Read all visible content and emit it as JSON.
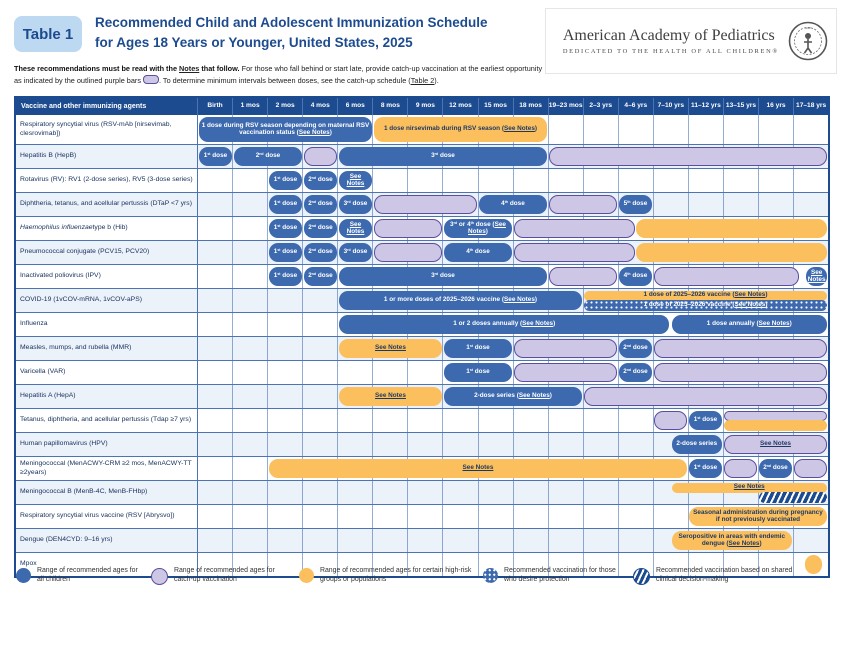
{
  "header": {
    "badge": "Table 1",
    "title_line1": "Recommended Child and Adolescent Immunization Schedule",
    "title_line2": "for Ages 18 Years or Younger, United States, 2025"
  },
  "logo": {
    "name": "American Academy of Pediatrics",
    "tagline": "DEDICATED TO THE HEALTH OF ALL CHILDREN®"
  },
  "intro": {
    "bold_pre": "These recommendations must be read with the ",
    "notes_link": "Notes",
    "bold_post": " that follow.",
    "text_mid": " For those who fall behind or start late, provide catch-up vaccination at the earliest opportunity as indicated by the outlined purple bars ",
    "text_after_pill": ". To determine minimum intervals between doses, see the catch-up schedule (",
    "table2_link": "Table 2",
    "text_end": ")."
  },
  "table": {
    "corner_header": "Vaccine and other immunizing agents",
    "columns": [
      "Birth",
      "1 mos",
      "2 mos",
      "4 mos",
      "6 mos",
      "8 mos",
      "9 mos",
      "12 mos",
      "15 mos",
      "18 mos",
      "19–23 mos",
      "2–3 yrs",
      "4–6 yrs",
      "7–10 yrs",
      "11–12 yrs",
      "13–15 yrs",
      "16 yrs",
      "17–18 yrs"
    ],
    "rows": [
      {
        "label": "Respiratory syncytial virus (RSV-mAb [nirsevimab, clesrovimab])",
        "bars": [
          {
            "type": "blue",
            "start": 0,
            "end": 5,
            "label": "1 dose during RSV season depending on maternal RSV vaccination status (See Notes)"
          },
          {
            "type": "orange",
            "start": 5,
            "end": 10,
            "label": "1 dose nirsevimab during RSV season (See Notes)"
          }
        ]
      },
      {
        "label": "Hepatitis B (HepB)",
        "bars": [
          {
            "type": "blue",
            "start": 0,
            "end": 1,
            "label": "1st dose"
          },
          {
            "type": "blue",
            "start": 1,
            "end": 3,
            "label": "2nd dose"
          },
          {
            "type": "purple",
            "start": 3,
            "end": 4,
            "label": ""
          },
          {
            "type": "blue",
            "start": 4,
            "end": 10,
            "label": "3rd dose"
          },
          {
            "type": "purple",
            "start": 10,
            "end": 18,
            "label": ""
          }
        ]
      },
      {
        "label": "Rotavirus (RV): RV1 (2-dose series), RV5 (3-dose series)",
        "bars": [
          {
            "type": "blue",
            "start": 2,
            "end": 3,
            "label": "1st dose"
          },
          {
            "type": "blue",
            "start": 3,
            "end": 4,
            "label": "2nd dose"
          },
          {
            "type": "blue",
            "start": 4,
            "end": 5,
            "label": "See Notes"
          }
        ]
      },
      {
        "label": "Diphtheria, tetanus, and acellular pertussis (DTaP <7 yrs)",
        "bars": [
          {
            "type": "blue",
            "start": 2,
            "end": 3,
            "label": "1st dose"
          },
          {
            "type": "blue",
            "start": 3,
            "end": 4,
            "label": "2nd dose"
          },
          {
            "type": "blue",
            "start": 4,
            "end": 5,
            "label": "3rd dose"
          },
          {
            "type": "purple",
            "start": 5,
            "end": 8,
            "label": ""
          },
          {
            "type": "blue",
            "start": 8,
            "end": 10,
            "label": "4th dose"
          },
          {
            "type": "purple",
            "start": 10,
            "end": 12,
            "label": ""
          },
          {
            "type": "blue",
            "start": 12,
            "end": 13,
            "label": "5th dose"
          }
        ]
      },
      {
        "label": "*Haemophilus influenzae* type b (Hib)",
        "bars": [
          {
            "type": "blue",
            "start": 2,
            "end": 3,
            "label": "1st dose"
          },
          {
            "type": "blue",
            "start": 3,
            "end": 4,
            "label": "2nd dose"
          },
          {
            "type": "blue",
            "start": 4,
            "end": 5,
            "label": "See Notes"
          },
          {
            "type": "purple",
            "start": 5,
            "end": 7,
            "label": ""
          },
          {
            "type": "blue",
            "start": 7,
            "end": 9,
            "label": "3rd or 4th dose (See Notes)"
          },
          {
            "type": "purple",
            "start": 9,
            "end": 12.5,
            "label": ""
          },
          {
            "type": "orange",
            "start": 12.5,
            "end": 18,
            "label": ""
          }
        ]
      },
      {
        "label": "Pneumococcal conjugate (PCV15, PCV20)",
        "bars": [
          {
            "type": "blue",
            "start": 2,
            "end": 3,
            "label": "1st dose"
          },
          {
            "type": "blue",
            "start": 3,
            "end": 4,
            "label": "2nd dose"
          },
          {
            "type": "blue",
            "start": 4,
            "end": 5,
            "label": "3rd dose"
          },
          {
            "type": "purple",
            "start": 5,
            "end": 7,
            "label": ""
          },
          {
            "type": "blue",
            "start": 7,
            "end": 9,
            "label": "4th dose"
          },
          {
            "type": "purple",
            "start": 9,
            "end": 12.5,
            "label": ""
          },
          {
            "type": "orange",
            "start": 12.5,
            "end": 18,
            "label": ""
          }
        ]
      },
      {
        "label": "Inactivated poliovirus (IPV)",
        "bars": [
          {
            "type": "blue",
            "start": 2,
            "end": 3,
            "label": "1st dose"
          },
          {
            "type": "blue",
            "start": 3,
            "end": 4,
            "label": "2nd dose"
          },
          {
            "type": "blue",
            "start": 4,
            "end": 10,
            "label": "3rd dose"
          },
          {
            "type": "purple",
            "start": 10,
            "end": 12,
            "label": ""
          },
          {
            "type": "blue",
            "start": 12,
            "end": 13,
            "label": "4th dose"
          },
          {
            "type": "purple",
            "start": 13,
            "end": 17.2,
            "label": ""
          },
          {
            "type": "blue",
            "start": 17.35,
            "end": 18,
            "label": "See Notes"
          }
        ]
      },
      {
        "label": "COVID-19 (1vCOV-mRNA, 1vCOV-aPS)",
        "bars": [
          {
            "type": "blue",
            "start": 4,
            "end": 11,
            "label": "1 or more doses of 2025–2026 vaccine (See Notes)"
          },
          {
            "type": "orange",
            "start": 11,
            "end": 18,
            "half": "top",
            "label": "1 dose of 2025–2026 vaccine (See Notes)"
          },
          {
            "type": "dotted",
            "start": 11,
            "end": 18,
            "half": "bottom",
            "label": "1 dose of 2025–2026 vaccine (See Notes)"
          }
        ]
      },
      {
        "label": "Influenza",
        "bars": [
          {
            "type": "blue",
            "start": 4,
            "end": 13.5,
            "label": "1 or 2 doses annually (See Notes)"
          },
          {
            "type": "blue",
            "start": 13.5,
            "end": 18,
            "label": "1 dose annually (See Notes)"
          }
        ]
      },
      {
        "label": "Measles, mumps, and rubella (MMR)",
        "bars": [
          {
            "type": "orange",
            "start": 4,
            "end": 7,
            "label": "See Notes"
          },
          {
            "type": "blue",
            "start": 7,
            "end": 9,
            "label": "1st dose"
          },
          {
            "type": "purple",
            "start": 9,
            "end": 12,
            "label": ""
          },
          {
            "type": "blue",
            "start": 12,
            "end": 13,
            "label": "2nd dose"
          },
          {
            "type": "purple",
            "start": 13,
            "end": 18,
            "label": ""
          }
        ]
      },
      {
        "label": "Varicella (VAR)",
        "bars": [
          {
            "type": "blue",
            "start": 7,
            "end": 9,
            "label": "1st dose"
          },
          {
            "type": "purple",
            "start": 9,
            "end": 12,
            "label": ""
          },
          {
            "type": "blue",
            "start": 12,
            "end": 13,
            "label": "2nd dose"
          },
          {
            "type": "purple",
            "start": 13,
            "end": 18,
            "label": ""
          }
        ]
      },
      {
        "label": "Hepatitis A (HepA)",
        "bars": [
          {
            "type": "orange",
            "start": 4,
            "end": 7,
            "label": "See Notes"
          },
          {
            "type": "blue",
            "start": 7,
            "end": 11,
            "label": "2-dose series (See Notes)"
          },
          {
            "type": "purple",
            "start": 11,
            "end": 18,
            "label": ""
          }
        ]
      },
      {
        "label": "Tetanus, diphtheria, and acellular pertussis (Tdap ≥7 yrs)",
        "bars": [
          {
            "type": "purple",
            "start": 13,
            "end": 14,
            "label": ""
          },
          {
            "type": "blue",
            "start": 14,
            "end": 15,
            "label": "1st dose"
          },
          {
            "type": "purple",
            "start": 15,
            "end": 18,
            "half": "top",
            "label": ""
          },
          {
            "type": "orange",
            "start": 15,
            "end": 18,
            "half": "bottom",
            "label": ""
          }
        ]
      },
      {
        "label": "Human papillomavirus (HPV)",
        "bars": [
          {
            "type": "blue",
            "start": 13.5,
            "end": 15,
            "label": "2-dose series"
          },
          {
            "type": "purple",
            "start": 15,
            "end": 18,
            "label": "See Notes"
          }
        ]
      },
      {
        "label": "Meningococcal (MenACWY-CRM ≥2 mos, MenACWY-TT ≥2years)",
        "bars": [
          {
            "type": "orange",
            "start": 2,
            "end": 14,
            "label": "See Notes"
          },
          {
            "type": "blue",
            "start": 14,
            "end": 15,
            "label": "1st dose"
          },
          {
            "type": "purple",
            "start": 15,
            "end": 16,
            "label": ""
          },
          {
            "type": "blue",
            "start": 16,
            "end": 17,
            "label": "2nd dose"
          },
          {
            "type": "purple",
            "start": 17,
            "end": 18,
            "label": ""
          }
        ]
      },
      {
        "label": "Meningococcal B (MenB-4C, MenB-FHbp)",
        "bars": [
          {
            "type": "orange",
            "start": 13.5,
            "end": 18,
            "half": "top",
            "label": "See Notes"
          },
          {
            "type": "hatched",
            "start": 16,
            "end": 18,
            "half": "bottom",
            "label": ""
          }
        ]
      },
      {
        "label": "Respiratory syncytial virus vaccine (RSV [Abrysvo])",
        "bars": [
          {
            "type": "orange",
            "start": 14,
            "end": 18,
            "label": "Seasonal administration during pregnancy if not previously vaccinated"
          }
        ]
      },
      {
        "label": "Dengue (DEN4CYD: 9–16 yrs)",
        "bars": [
          {
            "type": "orange",
            "start": 13.5,
            "end": 17,
            "label": "Seropositive in areas with endemic dengue (See Notes)"
          }
        ]
      },
      {
        "label": "Mpox",
        "bars": [
          {
            "type": "orange",
            "start": 17.3,
            "end": 17.85,
            "label": ""
          }
        ]
      }
    ]
  },
  "legend": [
    {
      "type": "blue",
      "label": "Range of recommended ages for all children"
    },
    {
      "type": "purple",
      "label": "Range of recommended ages for catch-up vaccination"
    },
    {
      "type": "orange",
      "label": "Range of recommended ages for certain high-risk groups or populations"
    },
    {
      "type": "dotted",
      "label": "Recommended vaccination for those who desire protection"
    },
    {
      "type": "hatched",
      "label": "Recommended vaccination based on shared clinical decision-making"
    }
  ],
  "colors": {
    "navy": "#1d4b8f",
    "bar_blue": "#3d69ae",
    "catchup_fill": "#cdc7e5",
    "catchup_border": "#5b4ea0",
    "high_risk_orange": "#fbbf5e",
    "row_alt": "#ebf2fa",
    "badge_bg": "#bdd8f1"
  }
}
